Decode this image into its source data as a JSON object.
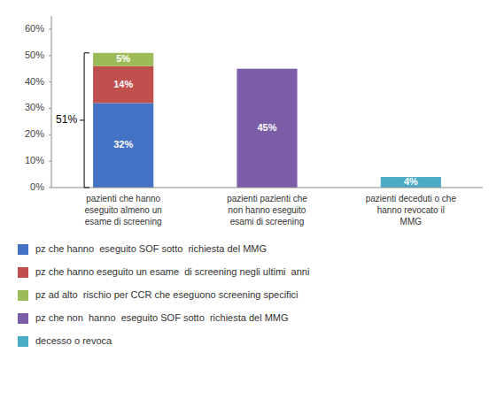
{
  "chart_data": {
    "type": "bar",
    "stacked": true,
    "data_labels": true,
    "legend": "bottom",
    "grid": false,
    "categories": [
      "pazienti che hanno\neseguito almeno un\nesame di screening",
      "pazienti pazienti che\nnon hanno eseguito\nesami di screening",
      "pazienti deceduti o che\nhanno revocato il\nMMG"
    ],
    "series": [
      {
        "name": "pz che hanno  eseguito SOF sotto  richiesta del MMG",
        "color": "#4472C4",
        "values": [
          0.32,
          null,
          null
        ],
        "value_labels": [
          "32%",
          null,
          null
        ]
      },
      {
        "name": "pz che hanno eseguito un esame  di screening negli ultimi  anni",
        "color": "#C0504D",
        "values": [
          0.14,
          null,
          null
        ],
        "value_labels": [
          "14%",
          null,
          null
        ]
      },
      {
        "name": "pz ad alto  rischio per CCR che eseguono screening specifici",
        "color": "#9BBB59",
        "values": [
          0.05,
          null,
          null
        ],
        "value_labels": [
          "5%",
          null,
          null
        ]
      },
      {
        "name": "pz che non  hanno  eseguito SOF sotto  richiesta del MMG",
        "color": "#7B5EA7",
        "values": [
          null,
          0.45,
          null
        ],
        "value_labels": [
          null,
          "45%",
          null
        ]
      },
      {
        "name": "decesso o revoca",
        "color": "#4BACC6",
        "values": [
          null,
          null,
          0.04
        ],
        "value_labels": [
          null,
          null,
          "4%"
        ]
      }
    ],
    "annotations": [
      {
        "text": "51%"
      }
    ],
    "ylim": [
      0,
      0.65
    ],
    "yticks": [
      {
        "value": 0.0,
        "label": "0%"
      },
      {
        "value": 0.1,
        "label": "10%"
      },
      {
        "value": 0.2,
        "label": "20%"
      },
      {
        "value": 0.3,
        "label": "30%"
      },
      {
        "value": 0.4,
        "label": "40%"
      },
      {
        "value": 0.5,
        "label": "50%"
      },
      {
        "value": 0.6,
        "label": "60%"
      }
    ]
  }
}
